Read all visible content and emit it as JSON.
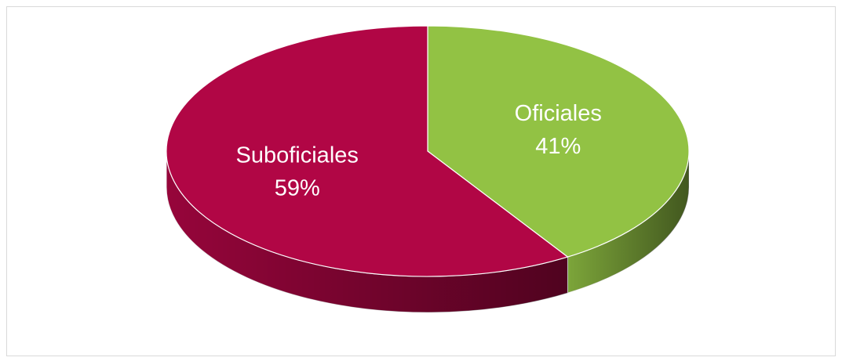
{
  "chart_data": {
    "type": "pie",
    "categories": [
      "Oficiales",
      "Suboficiales"
    ],
    "values": [
      41,
      59
    ],
    "value_labels": [
      "41%",
      "59%"
    ],
    "colors": [
      "#92c244",
      "#b10645"
    ]
  }
}
